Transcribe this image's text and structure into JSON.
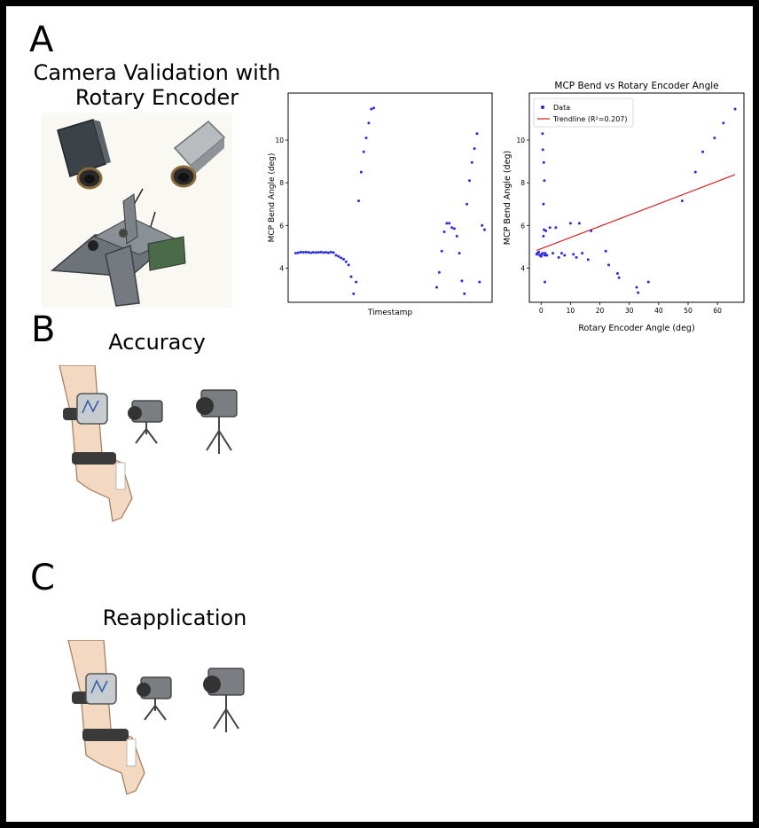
{
  "panels": {
    "a": {
      "letter": "A",
      "title_line1": "Camera Validation with",
      "title_line2": "Rotary Encoder"
    },
    "b": {
      "letter": "B",
      "title": "Accuracy"
    },
    "c": {
      "letter": "C",
      "title": "Reapplication"
    }
  },
  "colors": {
    "points": "#2b2bdc",
    "trendline": "#d62020"
  },
  "chart_data": [
    {
      "type": "scatter",
      "title": "",
      "xlabel": "Timestamp",
      "ylabel": "MCP Bend Angle (deg)",
      "x_ticks_visible": false,
      "yticks": [
        4,
        6,
        8,
        10
      ],
      "ylim": [
        2.4,
        12.2
      ],
      "xlim": [
        -3,
        78
      ],
      "series": [
        {
          "x": [
            0,
            1,
            2,
            3,
            4,
            5,
            6,
            7,
            8,
            9,
            10,
            11,
            12,
            13,
            14,
            15,
            16,
            17,
            18,
            19,
            20,
            21,
            22,
            23,
            24,
            25,
            26,
            27,
            28,
            29,
            30,
            31
          ],
          "y": [
            4.7,
            4.72,
            4.75,
            4.74,
            4.75,
            4.74,
            4.72,
            4.74,
            4.73,
            4.74,
            4.75,
            4.73,
            4.74,
            4.72,
            4.75,
            4.73,
            4.6,
            4.55,
            4.48,
            4.42,
            4.3,
            4.15,
            3.6,
            2.8,
            3.35,
            7.15,
            8.5,
            9.45,
            10.1,
            10.8,
            11.45,
            11.5
          ]
        },
        {
          "x": [
            56,
            57,
            58,
            59,
            60,
            61,
            62,
            63,
            64,
            65,
            66,
            67,
            68,
            69,
            70,
            71,
            72,
            73,
            74,
            75
          ],
          "y": [
            3.1,
            3.8,
            4.8,
            5.7,
            6.1,
            6.1,
            5.9,
            5.85,
            5.5,
            4.7,
            3.4,
            2.8,
            7.0,
            8.1,
            8.95,
            9.6,
            10.3,
            3.35,
            6.0,
            5.8
          ]
        }
      ]
    },
    {
      "type": "scatter",
      "title": "MCP Bend vs Rotary Encoder Angle",
      "xlabel": "Rotary Encoder Angle (deg)",
      "ylabel": "MCP Bend Angle (deg)",
      "xticks": [
        0,
        10,
        20,
        30,
        40,
        50,
        60
      ],
      "yticks": [
        4,
        6,
        8,
        10
      ],
      "xlim": [
        -4,
        69
      ],
      "ylim": [
        2.4,
        12.2
      ],
      "legend": {
        "position": "top-left",
        "entries": [
          "Data",
          "Trendline (R²=0.207)"
        ]
      },
      "series": [
        {
          "name": "Data",
          "x": [
            -1.5,
            -1.2,
            -1,
            -0.8,
            -0.5,
            0,
            0.2,
            0.5,
            0.8,
            1,
            1.2,
            1.4,
            1.6,
            2,
            3,
            4,
            5,
            6,
            7,
            8,
            10,
            11,
            12,
            13,
            14,
            16,
            17,
            22,
            23,
            26,
            26.5,
            32.5,
            33,
            36.5,
            48,
            52.5,
            55,
            59,
            62,
            66,
            0.6,
            0.9,
            1.1,
            0.8,
            0.5,
            1.3
          ],
          "y": [
            4.65,
            4.7,
            4.72,
            4.75,
            4.6,
            4.55,
            4.65,
            4.7,
            5.5,
            5.8,
            4.6,
            4.7,
            5.75,
            4.6,
            5.9,
            4.7,
            5.9,
            4.5,
            4.7,
            4.6,
            6.1,
            4.65,
            4.5,
            6.1,
            4.7,
            4.4,
            5.75,
            4.8,
            4.15,
            3.75,
            3.55,
            3.1,
            2.85,
            3.35,
            7.15,
            8.5,
            9.45,
            10.1,
            10.8,
            11.45,
            9.55,
            8.95,
            8.1,
            7.0,
            10.3,
            3.35
          ]
        },
        {
          "name": "Trendline (R²=0.207)",
          "type": "line",
          "x": [
            -1.5,
            66
          ],
          "y": [
            4.83,
            8.38
          ]
        }
      ]
    }
  ]
}
